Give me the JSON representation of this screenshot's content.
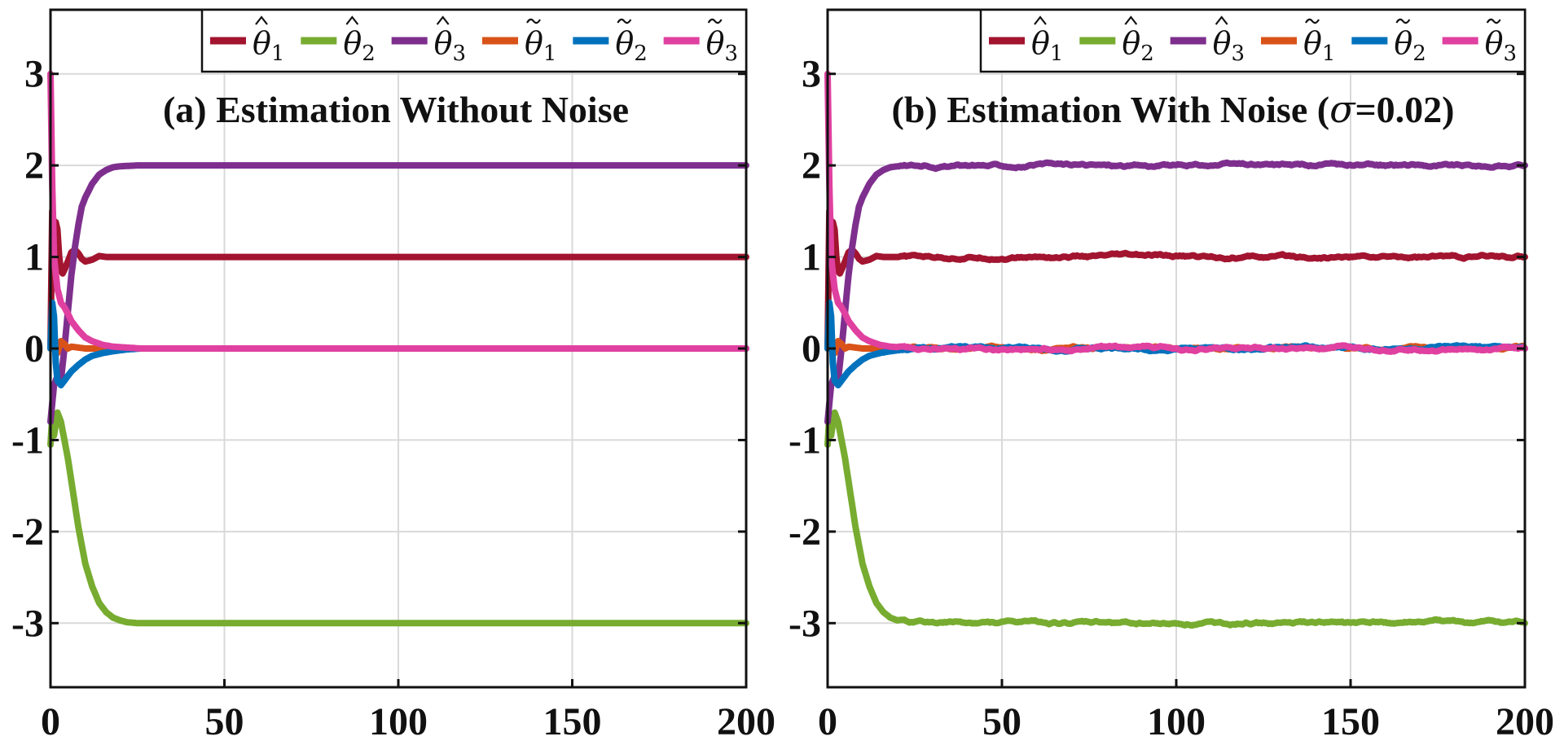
{
  "colors": {
    "theta_hat_1": "#A2142F",
    "theta_hat_2": "#77AC30",
    "theta_hat_3": "#7E2F8E",
    "theta_tilde_1": "#D95319",
    "theta_tilde_2": "#0072BD",
    "theta_tilde_3": "#E040A0",
    "grid": "#d9d9d9",
    "axis": "#111111"
  },
  "chart_data": [
    {
      "type": "line",
      "title": "(a) Estimation Without Noise",
      "xlabel": "",
      "ylabel": "",
      "xlim": [
        0,
        200
      ],
      "ylim": [
        -3.7,
        3.7
      ],
      "x_ticks": [
        0,
        50,
        100,
        150,
        200
      ],
      "x_tick_labels": [
        "0",
        "50",
        "100",
        "150",
        "200"
      ],
      "y_ticks": [
        -3,
        -2,
        -1,
        0,
        1,
        2,
        3
      ],
      "y_tick_labels": [
        "-3",
        "-2",
        "-1",
        "0",
        "1",
        "2",
        "3"
      ],
      "grid": true,
      "legend_position": "top",
      "noise": 0,
      "series": [
        {
          "name": "θ̂1",
          "symbol": "θ",
          "accent": "hat",
          "sub": "1",
          "color_key": "theta_hat_1",
          "x": [
            0,
            0.5,
            1,
            1.5,
            2,
            2.5,
            3,
            3.5,
            4,
            5,
            6,
            7,
            8,
            9,
            10,
            12,
            14,
            16,
            20,
            25,
            30,
            40,
            200
          ],
          "y": [
            0,
            1.5,
            1.35,
            1.38,
            1.3,
            1.0,
            0.85,
            0.82,
            0.86,
            0.95,
            1.05,
            1.08,
            1.04,
            0.98,
            0.95,
            0.97,
            1.01,
            1.0,
            1.0,
            1.0,
            1.0,
            1.0,
            1.0
          ]
        },
        {
          "name": "θ̂2",
          "symbol": "θ",
          "accent": "hat",
          "sub": "2",
          "color_key": "theta_hat_2",
          "x": [
            0,
            0.5,
            1,
            2,
            3,
            4,
            5,
            6,
            7,
            8,
            10,
            12,
            14,
            16,
            18,
            20,
            22,
            25,
            30,
            40,
            200
          ],
          "y": [
            -1.05,
            -0.75,
            -0.95,
            -0.7,
            -0.8,
            -1.0,
            -1.2,
            -1.45,
            -1.7,
            -1.95,
            -2.35,
            -2.6,
            -2.78,
            -2.88,
            -2.94,
            -2.97,
            -2.99,
            -3.0,
            -3.0,
            -3.0,
            -3.0
          ]
        },
        {
          "name": "θ̂3",
          "symbol": "θ",
          "accent": "hat",
          "sub": "3",
          "color_key": "theta_hat_3",
          "x": [
            0,
            0.5,
            1,
            2,
            3,
            4,
            5,
            6,
            7,
            8,
            9,
            10,
            12,
            14,
            16,
            18,
            20,
            25,
            30,
            200
          ],
          "y": [
            -0.8,
            -0.6,
            -0.4,
            -0.3,
            -0.35,
            0.0,
            0.4,
            0.8,
            1.1,
            1.35,
            1.55,
            1.65,
            1.8,
            1.9,
            1.95,
            1.98,
            1.99,
            2.0,
            2.0,
            2.0
          ]
        },
        {
          "name": "θ̃1",
          "symbol": "θ",
          "accent": "tilde",
          "sub": "1",
          "color_key": "theta_tilde_1",
          "x": [
            0,
            0.5,
            1,
            2,
            3,
            4,
            5,
            6,
            8,
            10,
            12,
            15,
            20,
            200
          ],
          "y": [
            0.0,
            0.3,
            0.05,
            -0.05,
            0.08,
            0.05,
            0.0,
            0.02,
            0.01,
            0.0,
            0.0,
            0.0,
            0.0,
            0.0
          ]
        },
        {
          "name": "θ̃2",
          "symbol": "θ",
          "accent": "tilde",
          "sub": "2",
          "color_key": "theta_tilde_2",
          "x": [
            0,
            0.5,
            1,
            1.5,
            2,
            3,
            4,
            5,
            6,
            8,
            10,
            12,
            15,
            18,
            22,
            26,
            30,
            200
          ],
          "y": [
            0.0,
            0.5,
            0.35,
            -0.15,
            -0.35,
            -0.4,
            -0.35,
            -0.3,
            -0.25,
            -0.18,
            -0.12,
            -0.08,
            -0.05,
            -0.03,
            -0.01,
            0.0,
            0.0,
            0.0
          ]
        },
        {
          "name": "θ̃3",
          "symbol": "θ",
          "accent": "tilde",
          "sub": "3",
          "color_key": "theta_tilde_3",
          "x": [
            0,
            0.5,
            1,
            2,
            3,
            4,
            5,
            6,
            8,
            10,
            12,
            15,
            18,
            22,
            26,
            30,
            200
          ],
          "y": [
            3.0,
            1.8,
            1.0,
            0.65,
            0.5,
            0.45,
            0.38,
            0.3,
            0.2,
            0.12,
            0.08,
            0.04,
            0.02,
            0.01,
            0.0,
            0.0,
            0.0
          ]
        }
      ]
    },
    {
      "type": "line",
      "title_prefix": "(b) Estimation With Noise (",
      "title_symbol": "σ",
      "title_suffix": "=0.02)",
      "xlabel": "",
      "ylabel": "",
      "xlim": [
        0,
        200
      ],
      "ylim": [
        -3.7,
        3.7
      ],
      "x_ticks": [
        0,
        50,
        100,
        150,
        200
      ],
      "x_tick_labels": [
        "0",
        "50",
        "100",
        "150",
        "200"
      ],
      "y_ticks": [
        -3,
        -2,
        -1,
        0,
        1,
        2,
        3
      ],
      "y_tick_labels": [
        "-3",
        "-2",
        "-1",
        "0",
        "1",
        "2",
        "3"
      ],
      "grid": true,
      "legend_position": "top",
      "noise": 0.02,
      "series": [
        {
          "name": "θ̂1",
          "symbol": "θ",
          "accent": "hat",
          "sub": "1",
          "color_key": "theta_hat_1",
          "x": [
            0,
            0.5,
            1,
            1.5,
            2,
            2.5,
            3,
            3.5,
            4,
            5,
            6,
            7,
            8,
            9,
            10,
            12,
            14,
            16,
            20,
            25,
            30,
            40,
            200
          ],
          "y": [
            0,
            1.5,
            1.35,
            1.38,
            1.3,
            1.0,
            0.85,
            0.82,
            0.86,
            0.95,
            1.05,
            1.08,
            1.04,
            0.98,
            0.95,
            0.97,
            1.01,
            1.0,
            1.0,
            1.0,
            1.0,
            1.0,
            1.0
          ]
        },
        {
          "name": "θ̂2",
          "symbol": "θ",
          "accent": "hat",
          "sub": "2",
          "color_key": "theta_hat_2",
          "x": [
            0,
            0.5,
            1,
            2,
            3,
            4,
            5,
            6,
            7,
            8,
            10,
            12,
            14,
            16,
            18,
            20,
            22,
            25,
            30,
            40,
            200
          ],
          "y": [
            -1.05,
            -0.75,
            -0.95,
            -0.7,
            -0.8,
            -1.0,
            -1.2,
            -1.45,
            -1.7,
            -1.95,
            -2.35,
            -2.6,
            -2.78,
            -2.88,
            -2.94,
            -2.97,
            -2.99,
            -3.0,
            -3.0,
            -3.0,
            -3.0
          ]
        },
        {
          "name": "θ̂3",
          "symbol": "θ",
          "accent": "hat",
          "sub": "3",
          "color_key": "theta_hat_3",
          "x": [
            0,
            0.5,
            1,
            2,
            3,
            4,
            5,
            6,
            7,
            8,
            9,
            10,
            12,
            14,
            16,
            18,
            20,
            25,
            30,
            200
          ],
          "y": [
            -0.8,
            -0.6,
            -0.4,
            -0.3,
            -0.35,
            0.0,
            0.4,
            0.8,
            1.1,
            1.35,
            1.55,
            1.65,
            1.8,
            1.9,
            1.95,
            1.98,
            1.99,
            2.0,
            2.0,
            2.0
          ]
        },
        {
          "name": "θ̃1",
          "symbol": "θ",
          "accent": "tilde",
          "sub": "1",
          "color_key": "theta_tilde_1",
          "x": [
            0,
            0.5,
            1,
            2,
            3,
            4,
            5,
            6,
            8,
            10,
            12,
            15,
            20,
            200
          ],
          "y": [
            0.0,
            0.3,
            0.05,
            -0.05,
            0.08,
            0.05,
            0.0,
            0.02,
            0.01,
            0.0,
            0.0,
            0.0,
            0.0,
            0.0
          ]
        },
        {
          "name": "θ̃2",
          "symbol": "θ",
          "accent": "tilde",
          "sub": "2",
          "color_key": "theta_tilde_2",
          "x": [
            0,
            0.5,
            1,
            1.5,
            2,
            3,
            4,
            5,
            6,
            8,
            10,
            12,
            15,
            18,
            22,
            26,
            30,
            200
          ],
          "y": [
            0.0,
            0.5,
            0.35,
            -0.15,
            -0.35,
            -0.4,
            -0.35,
            -0.3,
            -0.25,
            -0.18,
            -0.12,
            -0.08,
            -0.05,
            -0.03,
            -0.01,
            0.0,
            0.0,
            0.0
          ]
        },
        {
          "name": "θ̃3",
          "symbol": "θ",
          "accent": "tilde",
          "sub": "3",
          "color_key": "theta_tilde_3",
          "x": [
            0,
            0.5,
            1,
            2,
            3,
            4,
            5,
            6,
            8,
            10,
            12,
            15,
            18,
            22,
            26,
            30,
            200
          ],
          "y": [
            3.0,
            1.8,
            1.0,
            0.65,
            0.5,
            0.45,
            0.38,
            0.3,
            0.2,
            0.12,
            0.08,
            0.04,
            0.02,
            0.01,
            0.0,
            0.0,
            0.0
          ]
        }
      ]
    }
  ]
}
